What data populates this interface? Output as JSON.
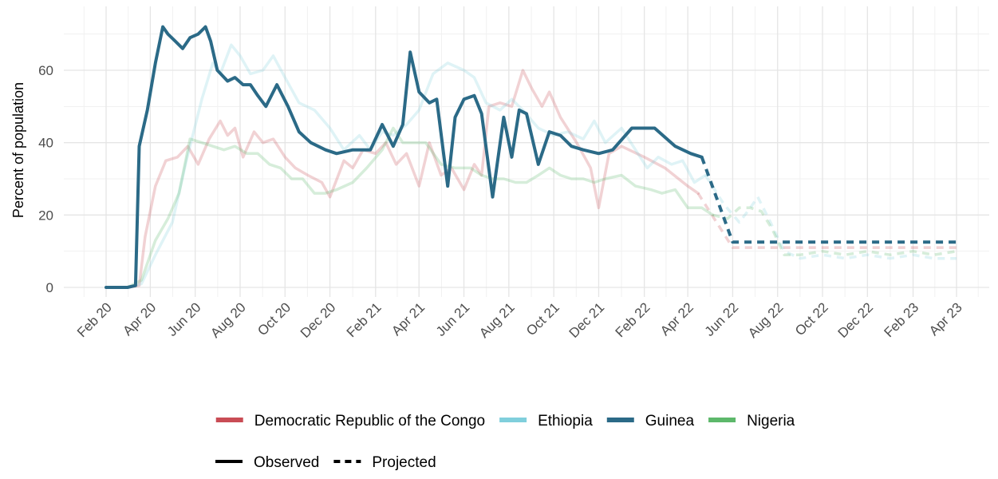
{
  "chart_data": {
    "type": "line",
    "title": "",
    "xlabel": "",
    "ylabel": "Percent of population",
    "x_range": [
      "2020-01-01",
      "2023-04-01"
    ],
    "ylim": [
      0,
      72
    ],
    "y_ticks": [
      0,
      20,
      40,
      60
    ],
    "x_ticks": [
      {
        "date": "2020-02-01",
        "label": "Feb 20"
      },
      {
        "date": "2020-04-01",
        "label": "Apr 20"
      },
      {
        "date": "2020-06-01",
        "label": "Jun 20"
      },
      {
        "date": "2020-08-01",
        "label": "Aug 20"
      },
      {
        "date": "2020-10-01",
        "label": "Oct 20"
      },
      {
        "date": "2020-12-01",
        "label": "Dec 20"
      },
      {
        "date": "2021-02-01",
        "label": "Feb 21"
      },
      {
        "date": "2021-04-01",
        "label": "Apr 21"
      },
      {
        "date": "2021-06-01",
        "label": "Jun 21"
      },
      {
        "date": "2021-08-01",
        "label": "Aug 21"
      },
      {
        "date": "2021-10-01",
        "label": "Oct 21"
      },
      {
        "date": "2021-12-01",
        "label": "Dec 21"
      },
      {
        "date": "2022-02-01",
        "label": "Feb 22"
      },
      {
        "date": "2022-04-01",
        "label": "Apr 22"
      },
      {
        "date": "2022-06-01",
        "label": "Jun 22"
      },
      {
        "date": "2022-08-01",
        "label": "Aug 22"
      },
      {
        "date": "2022-10-01",
        "label": "Oct 22"
      },
      {
        "date": "2022-12-01",
        "label": "Dec 22"
      },
      {
        "date": "2023-02-01",
        "label": "Feb 23"
      },
      {
        "date": "2023-04-01",
        "label": "Apr 23"
      }
    ],
    "grid": true,
    "legend_position": "bottom",
    "colors": {
      "Democratic Republic of the Congo": "#c94c55",
      "Ethiopia": "#80cfdc",
      "Guinea": "#2b6a87",
      "Nigeria": "#5db86b"
    },
    "legend": {
      "series_entries": [
        "Democratic Republic of the Congo",
        "Ethiopia",
        "Guinea",
        "Nigeria"
      ],
      "line_type_entries": [
        "Observed",
        "Projected"
      ]
    },
    "series": [
      {
        "name": "Democratic Republic of the Congo",
        "highlighted": false,
        "observed": [
          [
            "2020-02-01",
            0
          ],
          [
            "2020-03-01",
            0
          ],
          [
            "2020-03-17",
            0.5
          ],
          [
            "2020-03-25",
            14
          ],
          [
            "2020-04-08",
            28
          ],
          [
            "2020-04-22",
            35
          ],
          [
            "2020-05-08",
            36
          ],
          [
            "2020-05-22",
            39
          ],
          [
            "2020-06-05",
            34
          ],
          [
            "2020-06-20",
            41
          ],
          [
            "2020-07-05",
            46
          ],
          [
            "2020-07-15",
            42
          ],
          [
            "2020-07-25",
            44
          ],
          [
            "2020-08-05",
            36
          ],
          [
            "2020-08-20",
            43
          ],
          [
            "2020-09-01",
            40
          ],
          [
            "2020-09-15",
            41
          ],
          [
            "2020-10-01",
            36
          ],
          [
            "2020-10-15",
            33
          ],
          [
            "2020-11-01",
            31
          ],
          [
            "2020-11-20",
            29
          ],
          [
            "2020-12-01",
            25
          ],
          [
            "2020-12-20",
            35
          ],
          [
            "2021-01-01",
            33
          ],
          [
            "2021-01-15",
            38
          ],
          [
            "2021-02-01",
            37
          ],
          [
            "2021-02-15",
            40
          ],
          [
            "2021-03-01",
            34
          ],
          [
            "2021-03-15",
            37
          ],
          [
            "2021-04-01",
            28
          ],
          [
            "2021-04-15",
            40
          ],
          [
            "2021-05-01",
            31
          ],
          [
            "2021-05-15",
            33
          ],
          [
            "2021-06-01",
            27
          ],
          [
            "2021-06-15",
            34
          ],
          [
            "2021-06-25",
            31
          ],
          [
            "2021-07-05",
            50
          ],
          [
            "2021-07-20",
            51
          ],
          [
            "2021-08-05",
            50
          ],
          [
            "2021-08-20",
            60
          ],
          [
            "2021-09-01",
            55
          ],
          [
            "2021-09-15",
            50
          ],
          [
            "2021-09-25",
            54
          ],
          [
            "2021-10-10",
            47
          ],
          [
            "2021-11-01",
            40
          ],
          [
            "2021-11-20",
            33
          ],
          [
            "2021-12-01",
            22
          ],
          [
            "2021-12-15",
            37
          ],
          [
            "2022-01-01",
            39
          ],
          [
            "2022-02-01",
            36
          ],
          [
            "2022-03-01",
            33
          ],
          [
            "2022-04-01",
            28
          ],
          [
            "2022-04-15",
            26
          ]
        ],
        "projected": [
          [
            "2022-04-15",
            26
          ],
          [
            "2022-06-01",
            11
          ],
          [
            "2023-04-01",
            11
          ]
        ]
      },
      {
        "name": "Ethiopia",
        "highlighted": false,
        "observed": [
          [
            "2020-02-01",
            0
          ],
          [
            "2020-03-01",
            0
          ],
          [
            "2020-03-20",
            1
          ],
          [
            "2020-04-08",
            9
          ],
          [
            "2020-05-01",
            18
          ],
          [
            "2020-05-20",
            35
          ],
          [
            "2020-06-10",
            52
          ],
          [
            "2020-06-25",
            62
          ],
          [
            "2020-07-05",
            59
          ],
          [
            "2020-07-20",
            67
          ],
          [
            "2020-08-01",
            64
          ],
          [
            "2020-08-15",
            59
          ],
          [
            "2020-09-01",
            60
          ],
          [
            "2020-09-15",
            64
          ],
          [
            "2020-10-01",
            58
          ],
          [
            "2020-10-20",
            51
          ],
          [
            "2020-11-10",
            49
          ],
          [
            "2020-12-01",
            44
          ],
          [
            "2020-12-20",
            38
          ],
          [
            "2021-01-10",
            42
          ],
          [
            "2021-01-25",
            38
          ],
          [
            "2021-02-10",
            43
          ],
          [
            "2021-02-25",
            42
          ],
          [
            "2021-03-15",
            45
          ],
          [
            "2021-04-01",
            49
          ],
          [
            "2021-04-20",
            59
          ],
          [
            "2021-05-10",
            62
          ],
          [
            "2021-06-01",
            60
          ],
          [
            "2021-06-15",
            58
          ],
          [
            "2021-07-01",
            51
          ],
          [
            "2021-07-20",
            49
          ],
          [
            "2021-08-05",
            52
          ],
          [
            "2021-08-20",
            49
          ],
          [
            "2021-09-10",
            44
          ],
          [
            "2021-10-01",
            42
          ],
          [
            "2021-10-20",
            43
          ],
          [
            "2021-11-10",
            41
          ],
          [
            "2021-11-25",
            46
          ],
          [
            "2021-12-10",
            40
          ],
          [
            "2022-01-01",
            44
          ],
          [
            "2022-01-20",
            38
          ],
          [
            "2022-02-05",
            33
          ],
          [
            "2022-02-20",
            36
          ],
          [
            "2022-03-10",
            34
          ],
          [
            "2022-03-25",
            35
          ],
          [
            "2022-04-10",
            29
          ],
          [
            "2022-04-25",
            31
          ]
        ],
        "projected": [
          [
            "2022-04-25",
            31
          ],
          [
            "2022-05-20",
            23
          ],
          [
            "2022-06-10",
            18
          ],
          [
            "2022-06-25",
            22
          ],
          [
            "2022-07-05",
            25
          ],
          [
            "2022-07-20",
            19
          ],
          [
            "2022-08-10",
            10
          ],
          [
            "2022-09-01",
            8
          ],
          [
            "2022-10-01",
            9
          ],
          [
            "2022-11-01",
            8
          ],
          [
            "2022-12-01",
            9
          ],
          [
            "2023-01-01",
            8
          ],
          [
            "2023-02-01",
            9
          ],
          [
            "2023-03-01",
            8
          ],
          [
            "2023-04-01",
            8
          ]
        ]
      },
      {
        "name": "Nigeria",
        "highlighted": false,
        "observed": [
          [
            "2020-02-01",
            0
          ],
          [
            "2020-03-01",
            0
          ],
          [
            "2020-03-20",
            2
          ],
          [
            "2020-04-08",
            13
          ],
          [
            "2020-04-25",
            19
          ],
          [
            "2020-05-10",
            26
          ],
          [
            "2020-05-25",
            41
          ],
          [
            "2020-06-10",
            40
          ],
          [
            "2020-06-25",
            39
          ],
          [
            "2020-07-10",
            38
          ],
          [
            "2020-07-25",
            39
          ],
          [
            "2020-08-10",
            37
          ],
          [
            "2020-08-25",
            37
          ],
          [
            "2020-09-10",
            34
          ],
          [
            "2020-09-25",
            33
          ],
          [
            "2020-10-10",
            30
          ],
          [
            "2020-10-25",
            30
          ],
          [
            "2020-11-10",
            26
          ],
          [
            "2020-11-25",
            26
          ],
          [
            "2020-12-10",
            27
          ],
          [
            "2021-01-01",
            29
          ],
          [
            "2021-01-20",
            33
          ],
          [
            "2021-02-10",
            38
          ],
          [
            "2021-02-25",
            44
          ],
          [
            "2021-03-10",
            40
          ],
          [
            "2021-03-25",
            40
          ],
          [
            "2021-04-10",
            40
          ],
          [
            "2021-05-01",
            34
          ],
          [
            "2021-05-20",
            33
          ],
          [
            "2021-06-10",
            33
          ],
          [
            "2021-06-25",
            31
          ],
          [
            "2021-07-10",
            30
          ],
          [
            "2021-07-25",
            30
          ],
          [
            "2021-08-10",
            29
          ],
          [
            "2021-08-25",
            29
          ],
          [
            "2021-09-10",
            31
          ],
          [
            "2021-09-25",
            33
          ],
          [
            "2021-10-10",
            31
          ],
          [
            "2021-10-25",
            30
          ],
          [
            "2021-11-10",
            30
          ],
          [
            "2021-11-25",
            29
          ],
          [
            "2021-12-10",
            30
          ],
          [
            "2022-01-01",
            31
          ],
          [
            "2022-01-20",
            28
          ],
          [
            "2022-02-10",
            27
          ],
          [
            "2022-02-25",
            26
          ],
          [
            "2022-03-15",
            27
          ],
          [
            "2022-04-01",
            22
          ],
          [
            "2022-04-20",
            22
          ],
          [
            "2022-05-05",
            20
          ]
        ],
        "projected": [
          [
            "2022-05-05",
            20
          ],
          [
            "2022-05-25",
            19
          ],
          [
            "2022-06-10",
            22
          ],
          [
            "2022-06-25",
            22
          ],
          [
            "2022-07-10",
            21
          ],
          [
            "2022-07-25",
            16
          ],
          [
            "2022-08-10",
            9
          ],
          [
            "2022-09-01",
            9
          ],
          [
            "2022-10-01",
            10
          ],
          [
            "2022-11-01",
            9
          ],
          [
            "2022-12-01",
            10
          ],
          [
            "2023-01-01",
            9
          ],
          [
            "2023-02-01",
            10
          ],
          [
            "2023-03-01",
            9
          ],
          [
            "2023-04-01",
            10
          ]
        ]
      },
      {
        "name": "Guinea",
        "highlighted": true,
        "observed": [
          [
            "2020-02-01",
            0
          ],
          [
            "2020-03-01",
            0
          ],
          [
            "2020-03-12",
            0.5
          ],
          [
            "2020-03-17",
            39
          ],
          [
            "2020-03-28",
            49
          ],
          [
            "2020-04-08",
            62
          ],
          [
            "2020-04-18",
            72
          ],
          [
            "2020-04-25",
            70
          ],
          [
            "2020-05-05",
            68
          ],
          [
            "2020-05-15",
            66
          ],
          [
            "2020-05-25",
            69
          ],
          [
            "2020-06-05",
            70
          ],
          [
            "2020-06-15",
            72
          ],
          [
            "2020-06-22",
            68
          ],
          [
            "2020-07-01",
            60
          ],
          [
            "2020-07-15",
            57
          ],
          [
            "2020-07-25",
            58
          ],
          [
            "2020-08-05",
            56
          ],
          [
            "2020-08-15",
            56
          ],
          [
            "2020-08-25",
            53
          ],
          [
            "2020-09-05",
            50
          ],
          [
            "2020-09-20",
            56
          ],
          [
            "2020-10-05",
            50
          ],
          [
            "2020-10-20",
            43
          ],
          [
            "2020-11-05",
            40
          ],
          [
            "2020-11-25",
            38
          ],
          [
            "2020-12-10",
            37
          ],
          [
            "2021-01-01",
            38
          ],
          [
            "2021-01-25",
            38
          ],
          [
            "2021-02-10",
            45
          ],
          [
            "2021-02-25",
            39
          ],
          [
            "2021-03-10",
            45
          ],
          [
            "2021-03-20",
            65
          ],
          [
            "2021-04-01",
            54
          ],
          [
            "2021-04-15",
            51
          ],
          [
            "2021-04-25",
            52
          ],
          [
            "2021-05-10",
            28
          ],
          [
            "2021-05-20",
            47
          ],
          [
            "2021-06-01",
            52
          ],
          [
            "2021-06-15",
            53
          ],
          [
            "2021-06-25",
            48
          ],
          [
            "2021-07-10",
            25
          ],
          [
            "2021-07-25",
            47
          ],
          [
            "2021-08-05",
            36
          ],
          [
            "2021-08-15",
            49
          ],
          [
            "2021-08-25",
            48
          ],
          [
            "2021-09-10",
            34
          ],
          [
            "2021-09-25",
            43
          ],
          [
            "2021-10-10",
            42
          ],
          [
            "2021-10-25",
            39
          ],
          [
            "2021-11-10",
            38
          ],
          [
            "2021-12-01",
            37
          ],
          [
            "2021-12-20",
            38
          ],
          [
            "2022-01-15",
            44
          ],
          [
            "2022-02-15",
            44
          ],
          [
            "2022-03-15",
            39
          ],
          [
            "2022-04-05",
            37
          ],
          [
            "2022-04-20",
            36
          ]
        ],
        "projected": [
          [
            "2022-04-20",
            36
          ],
          [
            "2022-06-01",
            12.5
          ],
          [
            "2023-04-01",
            12.5
          ]
        ]
      }
    ]
  }
}
